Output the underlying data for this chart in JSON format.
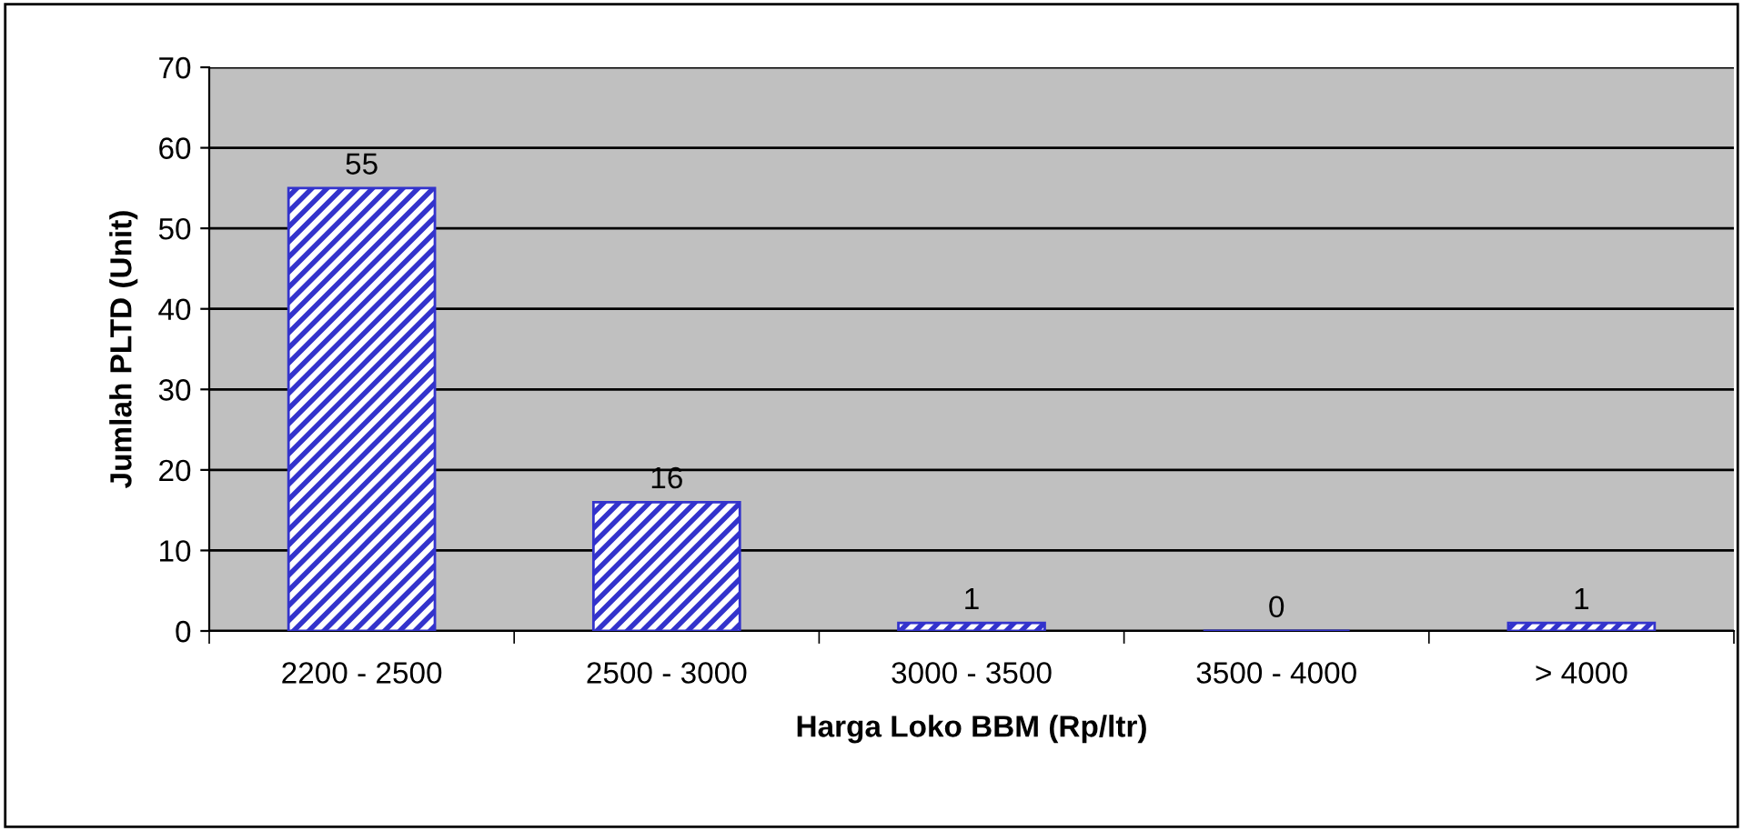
{
  "chart_data": {
    "type": "bar",
    "xlabel": "Harga Loko BBM (Rp/ltr)",
    "ylabel": "Jumlah PLTD (Unit)",
    "categories": [
      "2200 - 2500",
      "2500 - 3000",
      "3000 - 3500",
      "3500 - 4000",
      "> 4000"
    ],
    "values": [
      55,
      16,
      1,
      0,
      1
    ],
    "color": "#3333cc",
    "ylim": [
      0,
      70
    ],
    "yticks": [
      0,
      10,
      20,
      30,
      40,
      50,
      60,
      70
    ],
    "grid": "y",
    "data_labels": true
  }
}
